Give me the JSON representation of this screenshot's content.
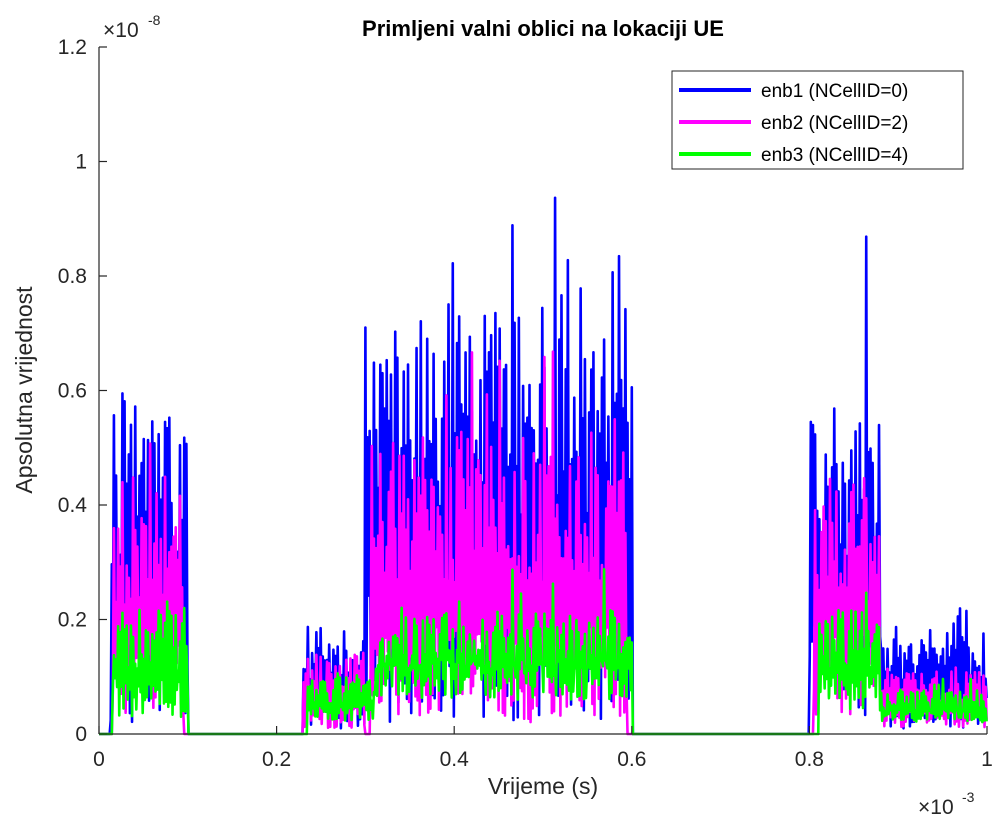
{
  "chart_data": {
    "type": "line",
    "title": "Primljeni valni oblici na lokaciji UE",
    "xlabel": "Vrijeme (s)",
    "ylabel": "Apsolutna vrijednost",
    "x_multiplier": "×10",
    "x_exponent": "-3",
    "y_multiplier": "×10",
    "y_exponent": "-8",
    "xlim": [
      0,
      1
    ],
    "ylim": [
      0,
      1.2
    ],
    "x_ticks": [
      0,
      0.2,
      0.4,
      0.6,
      0.8,
      1
    ],
    "x_tick_labels": [
      "0",
      "0.2",
      "0.4",
      "0.6",
      "0.8",
      "1"
    ],
    "y_ticks": [
      0,
      0.2,
      0.4,
      0.6,
      0.8,
      1,
      1.2
    ],
    "y_tick_labels": [
      "0",
      "0.2",
      "0.4",
      "0.6",
      "0.8",
      "1",
      "1.2"
    ],
    "grid": false,
    "legend_position": "top-right",
    "series": [
      {
        "name": "enb1 (NCellID=0)",
        "color": "#0000ff",
        "active_segments": [
          {
            "x_start": 0.012,
            "x_end": 0.1,
            "base": 0.02,
            "typical_peak": 0.53,
            "max_peak": 0.69
          },
          {
            "x_start": 0.23,
            "x_end": 0.3,
            "base": 0.01,
            "typical_peak": 0.17,
            "max_peak": 0.21
          },
          {
            "x_start": 0.3,
            "x_end": 0.6,
            "base": 0.02,
            "typical_peak": 0.68,
            "max_peak": 1.0
          },
          {
            "x_start": 0.8,
            "x_end": 0.88,
            "base": 0.03,
            "typical_peak": 0.53,
            "max_peak": 0.91
          },
          {
            "x_start": 0.88,
            "x_end": 1.0,
            "base": 0.01,
            "typical_peak": 0.17,
            "max_peak": 0.22
          }
        ],
        "silent_value": 0
      },
      {
        "name": "enb2 (NCellID=2)",
        "color": "#ff00ff",
        "active_segments": [
          {
            "x_start": 0.015,
            "x_end": 0.095,
            "base": 0.02,
            "typical_peak": 0.4,
            "max_peak": 0.52
          },
          {
            "x_start": 0.23,
            "x_end": 0.3,
            "base": 0.01,
            "typical_peak": 0.13,
            "max_peak": 0.17
          },
          {
            "x_start": 0.305,
            "x_end": 0.595,
            "base": 0.02,
            "typical_peak": 0.48,
            "max_peak": 0.67
          },
          {
            "x_start": 0.805,
            "x_end": 0.88,
            "base": 0.03,
            "typical_peak": 0.42,
            "max_peak": 0.54
          },
          {
            "x_start": 0.88,
            "x_end": 1.0,
            "base": 0.01,
            "typical_peak": 0.1,
            "max_peak": 0.14
          }
        ],
        "silent_value": 0
      },
      {
        "name": "enb3 (NCellID=4)",
        "color": "#00ff00",
        "active_segments": [
          {
            "x_start": 0.015,
            "x_end": 0.1,
            "base": 0.03,
            "typical_peak": 0.2,
            "max_peak": 0.3
          },
          {
            "x_start": 0.235,
            "x_end": 0.31,
            "base": 0.02,
            "typical_peak": 0.09,
            "max_peak": 0.12
          },
          {
            "x_start": 0.31,
            "x_end": 0.6,
            "base": 0.06,
            "typical_peak": 0.2,
            "max_peak": 0.3
          },
          {
            "x_start": 0.81,
            "x_end": 0.88,
            "base": 0.04,
            "typical_peak": 0.2,
            "max_peak": 0.25
          },
          {
            "x_start": 0.88,
            "x_end": 1.0,
            "base": 0.02,
            "typical_peak": 0.07,
            "max_peak": 0.1
          }
        ],
        "silent_value": 0
      }
    ]
  }
}
